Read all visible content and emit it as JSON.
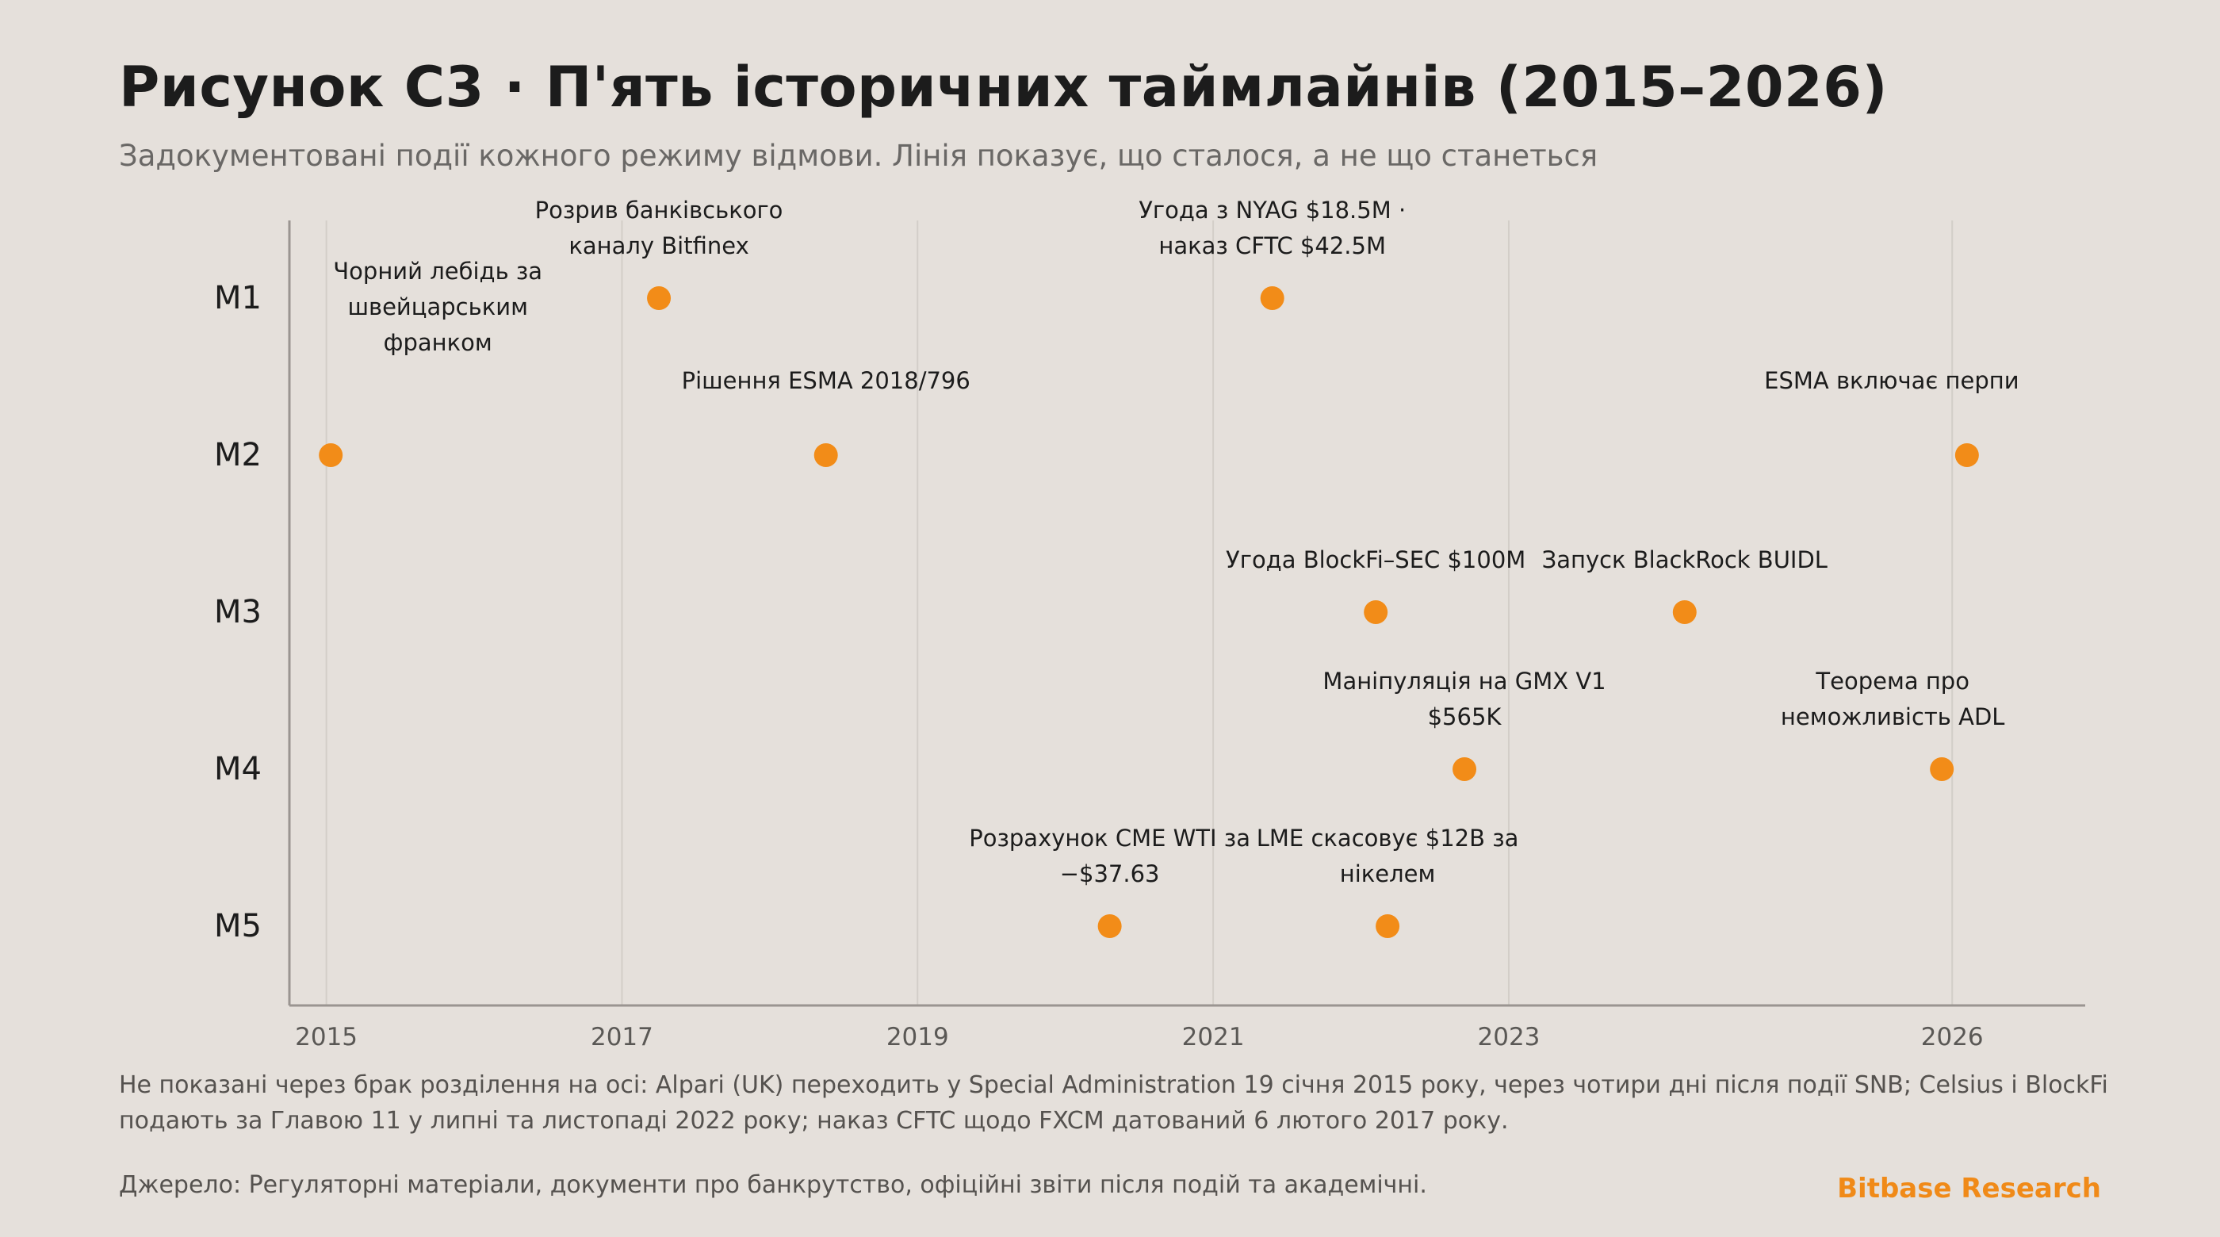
{
  "title": "Рисунок C3 · П'ять історичних таймлайнів (2015–2026)",
  "subtitle": "Задокументовані події кожного режиму відмови. Лінія показує, що сталося, а не що станеться",
  "footnote": "Не показані через брак розділення на осі: Alpari (UK) переходить у Special Administration 19 січня 2015 року, через чотири дні після події SNB; Celsius і BlockFi подають за Главою 11 у липні та листопаді 2022 року; наказ CFTC щодо FXCM датований 6 лютого 2017 року.",
  "source": "Джерело: Регуляторні матеріали, документи про банкрутство, офіційні звіти після подій та академічні.",
  "brand": "Bitbase Research",
  "colors": {
    "background": "#e5e0db",
    "point": "#f28c18",
    "grid": "#d3cec8",
    "axis": "#9a9591",
    "brand": "#f08a18"
  },
  "chart_data": {
    "type": "scatter",
    "x_label": "",
    "y_label": "",
    "xlim": [
      2014.75,
      2026.9
    ],
    "x_ticks": [
      2015,
      2017,
      2019,
      2021,
      2023,
      2026
    ],
    "y_categories": [
      "M1",
      "M2",
      "M3",
      "M4",
      "M5"
    ],
    "grid": "vertical",
    "points": [
      {
        "row": "M1",
        "x": 2017.25,
        "label": [
          "Розрив банківського",
          "каналу Bitfinex"
        ]
      },
      {
        "row": "M1",
        "x": 2021.4,
        "label": [
          "Угода з NYAG $18.5M ·",
          "наказ CFTC $42.5M"
        ]
      },
      {
        "row": "M2",
        "x": 2015.03,
        "label": [
          "Чорний лебідь за",
          "швейцарським",
          "франком"
        ]
      },
      {
        "row": "M2",
        "x": 2018.38,
        "label": [
          "Рішення ESMA 2018/796"
        ]
      },
      {
        "row": "M2",
        "x": 2026.1,
        "label": [
          "ESMA включає перпи"
        ]
      },
      {
        "row": "M3",
        "x": 2022.1,
        "label": [
          "Угода BlockFi–SEC $100M"
        ]
      },
      {
        "row": "M3",
        "x": 2024.19,
        "label": [
          "Запуск BlackRock BUIDL"
        ]
      },
      {
        "row": "M4",
        "x": 2022.7,
        "label": [
          "Маніпуляція на GMX V1",
          "$565K"
        ]
      },
      {
        "row": "M4",
        "x": 2025.93,
        "label": [
          "Теорема про",
          "неможливість ADL"
        ]
      },
      {
        "row": "M5",
        "x": 2020.3,
        "label": [
          "Розрахунок CME WTI за",
          "−$37.63"
        ]
      },
      {
        "row": "M5",
        "x": 2022.18,
        "label": [
          "LME скасовує $12B за",
          "нікелем"
        ]
      }
    ]
  }
}
